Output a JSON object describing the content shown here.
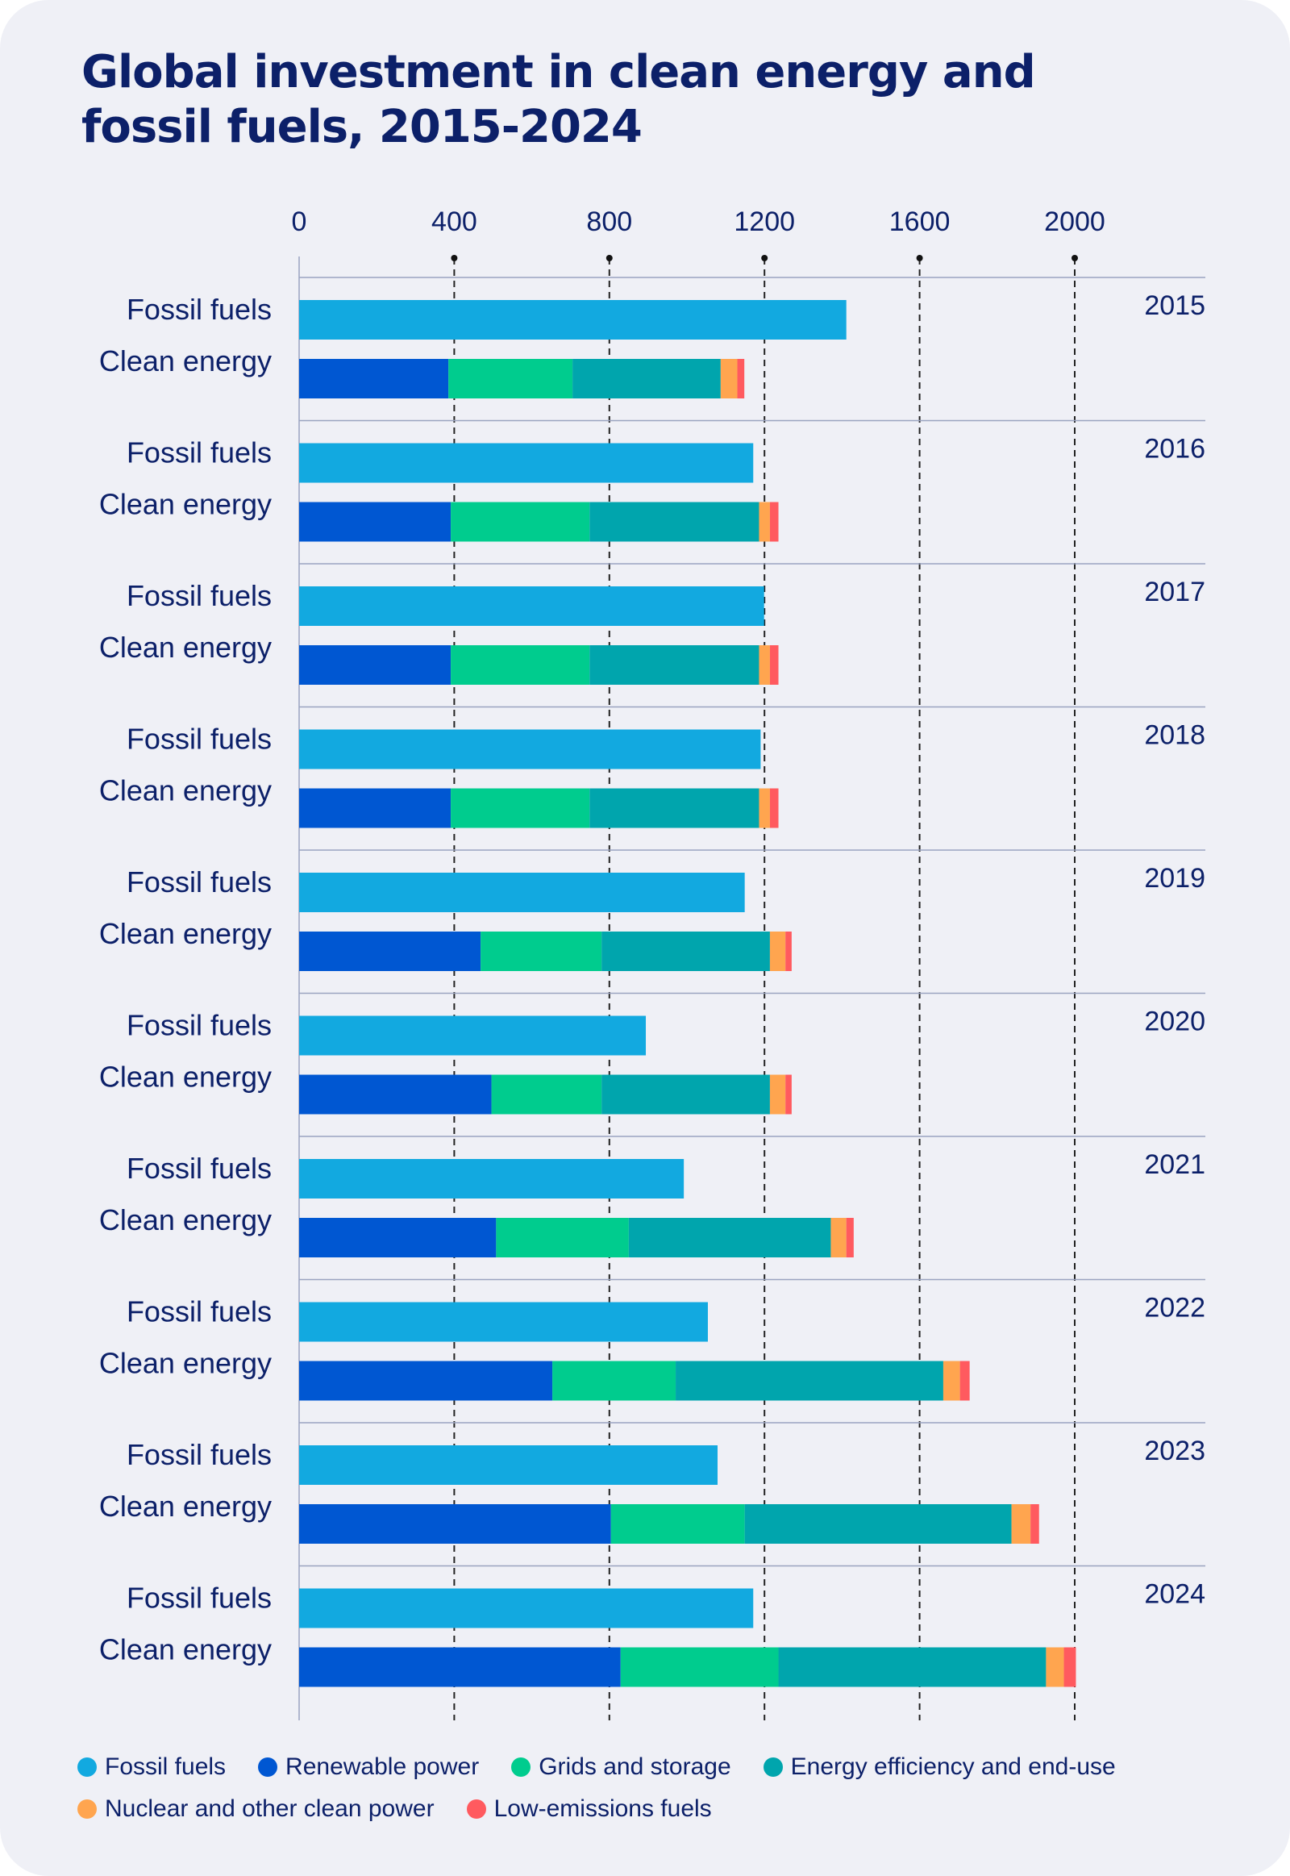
{
  "chart_data": {
    "type": "bar",
    "orientation": "horizontal-stacked",
    "title": "Global investment in clean energy and fossil fuels, 2015-2024",
    "xlim": [
      0,
      2000
    ],
    "xticks": [
      0,
      400,
      800,
      1200,
      1600,
      2000
    ],
    "grid": true,
    "legend_placement": "bottom",
    "row_labels": {
      "fossil": "Fossil fuels",
      "clean": "Clean energy"
    },
    "colors": {
      "Fossil fuels": "#12a9e0",
      "Renewable power": "#0057d2",
      "Grids and storage": "#00cc8e",
      "Energy efficiency and end-use": "#00a5ad",
      "Nuclear and other clean power": "#ffa54f",
      "Low-emissions fuels": "#ff5a5f"
    },
    "legend": [
      "Fossil fuels",
      "Renewable power",
      "Grids and storage",
      "Energy efficiency and end-use",
      "Nuclear and other clean power",
      "Low-emissions fuels"
    ],
    "categories": [
      "2015",
      "2016",
      "2017",
      "2018",
      "2019",
      "2020",
      "2021",
      "2022",
      "2023",
      "2024"
    ],
    "fossil_fuels": [
      1411,
      1171,
      1199,
      1190,
      1149,
      894,
      992,
      1054,
      1079,
      1171
    ],
    "clean_series": [
      {
        "name": "Renewable power",
        "values": [
          385,
          391,
          391,
          391,
          468,
          496,
          508,
          653,
          804,
          829
        ]
      },
      {
        "name": "Grids and storage",
        "values": [
          320,
          358,
          358,
          358,
          312,
          284,
          342,
          318,
          345,
          407
        ]
      },
      {
        "name": "Energy efficiency and end-use",
        "values": [
          382,
          437,
          437,
          437,
          434,
          434,
          521,
          690,
          688,
          690
        ]
      },
      {
        "name": "Nuclear and other clean power",
        "values": [
          43,
          28,
          28,
          28,
          40,
          40,
          40,
          43,
          49,
          46
        ]
      },
      {
        "name": "Low-emissions fuels",
        "values": [
          18,
          22,
          22,
          22,
          16,
          16,
          19,
          25,
          22,
          31
        ]
      }
    ]
  }
}
